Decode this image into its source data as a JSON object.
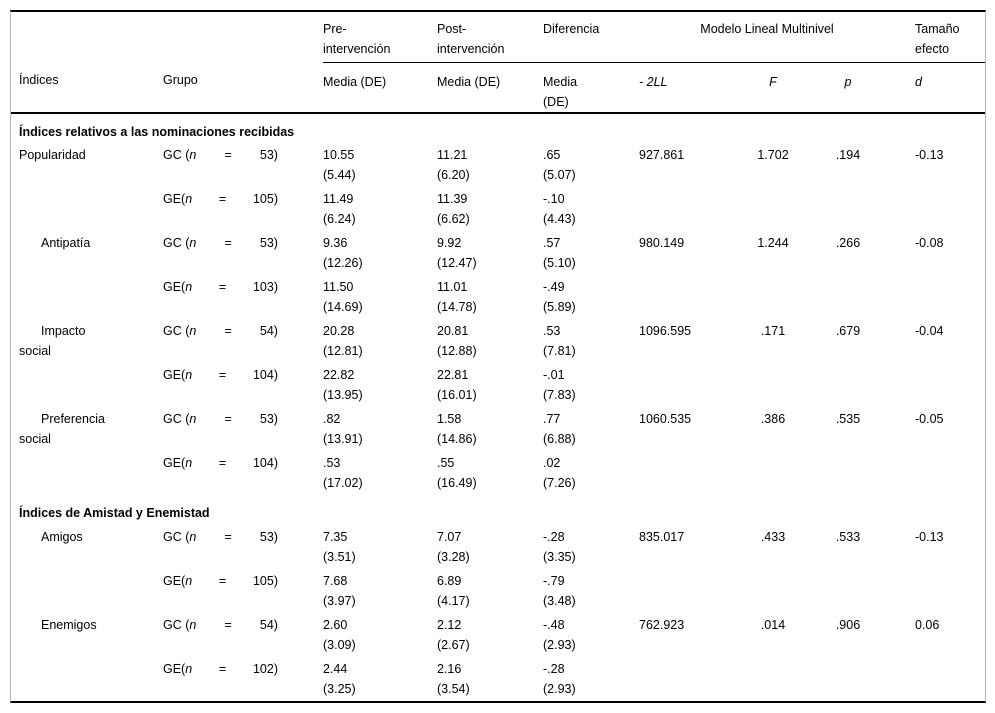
{
  "header": {
    "col_indices": "Índices",
    "col_grupo": "Grupo",
    "col_pre": "Pre-\nintervención",
    "col_post": "Post-\nintervención",
    "col_dif": "Diferencia",
    "col_mlm": "Modelo Lineal Multinivel",
    "col_tamano": "Tamaño\nefecto",
    "sub_media_pre": "Media (DE)",
    "sub_media_post": "Media (DE)",
    "sub_media_dif": "Media\n(DE)",
    "sub_ll": "- 2LL",
    "sub_f": "F",
    "sub_p": "p",
    "sub_d": "d"
  },
  "sections": [
    {
      "title": "Índices relativos a las nominaciones recibidas",
      "rows": [
        {
          "index_lines": [
            {
              "text": "Popularidad",
              "indent": false
            }
          ],
          "ll": "927.861",
          "f": "1.702",
          "p": ".194",
          "d": "-0.13",
          "subrows": [
            {
              "group": {
                "prefix": "GC (",
                "n": "n",
                "eq": "=",
                "count": "53)"
              },
              "pre_mean": "10.55",
              "pre_sd": "(5.44)",
              "post_mean": "11.21",
              "post_sd": "(6.20)",
              "dif_mean": ".65",
              "dif_sd": "(5.07)"
            },
            {
              "group": {
                "prefix": "GE(",
                "n": "n",
                "eq": "=",
                "count": "105)"
              },
              "pre_mean": "11.49",
              "pre_sd": "(6.24)",
              "post_mean": "11.39",
              "post_sd": "(6.62)",
              "dif_mean": "-.10",
              "dif_sd": "(4.43)"
            }
          ]
        },
        {
          "index_lines": [
            {
              "text": "Antipatía",
              "indent": true
            }
          ],
          "ll": "980.149",
          "f": "1.244",
          "p": ".266",
          "d": "-0.08",
          "subrows": [
            {
              "group": {
                "prefix": "GC (",
                "n": "n",
                "eq": "=",
                "count": "53)"
              },
              "pre_mean": "9.36",
              "pre_sd": "(12.26)",
              "post_mean": "9.92",
              "post_sd": "(12.47)",
              "dif_mean": ".57",
              "dif_sd": "(5.10)"
            },
            {
              "group": {
                "prefix": "GE(",
                "n": "n",
                "eq": "=",
                "count": "103)"
              },
              "pre_mean": "11.50",
              "pre_sd": "(14.69)",
              "post_mean": "11.01",
              "post_sd": "(14.78)",
              "dif_mean": "-.49",
              "dif_sd": "(5.89)"
            }
          ]
        },
        {
          "index_lines": [
            {
              "text": "Impacto",
              "indent": true
            },
            {
              "text": "social",
              "indent": false
            }
          ],
          "ll": "1096.595",
          "f": ".171",
          "p": ".679",
          "d": "-0.04",
          "subrows": [
            {
              "group": {
                "prefix": "GC (",
                "n": "n",
                "eq": "=",
                "count": "54)"
              },
              "pre_mean": "20.28",
              "pre_sd": "(12.81)",
              "post_mean": "20.81",
              "post_sd": "(12.88)",
              "dif_mean": ".53",
              "dif_sd": "(7.81)"
            },
            {
              "group": {
                "prefix": "GE(",
                "n": "n",
                "eq": "=",
                "count": "104)"
              },
              "pre_mean": "22.82",
              "pre_sd": "(13.95)",
              "post_mean": "22.81",
              "post_sd": "(16.01)",
              "dif_mean": "-.01",
              "dif_sd": "(7.83)"
            }
          ]
        },
        {
          "index_lines": [
            {
              "text": "Preferencia",
              "indent": true
            },
            {
              "text": "social",
              "indent": false
            }
          ],
          "ll": "1060.535",
          "f": ".386",
          "p": ".535",
          "d": "-0.05",
          "subrows": [
            {
              "group": {
                "prefix": "GC (",
                "n": "n",
                "eq": "=",
                "count": "53)"
              },
              "pre_mean": ".82",
              "pre_sd": "(13.91)",
              "post_mean": "1.58",
              "post_sd": "(14.86)",
              "dif_mean": ".77",
              "dif_sd": "(6.88)"
            },
            {
              "group": {
                "prefix": "GE(",
                "n": "n",
                "eq": "=",
                "count": "104)"
              },
              "pre_mean": ".53",
              "pre_sd": "(17.02)",
              "post_mean": ".55",
              "post_sd": "(16.49)",
              "dif_mean": ".02",
              "dif_sd": "(7.26)"
            }
          ]
        }
      ]
    },
    {
      "title": "Índices de Amistad y Enemistad",
      "rows": [
        {
          "index_lines": [
            {
              "text": "Amigos",
              "indent": true
            }
          ],
          "ll": "835.017",
          "f": ".433",
          "p": ".533",
          "d": "-0.13",
          "subrows": [
            {
              "group": {
                "prefix": "GC (",
                "n": "n",
                "eq": "=",
                "count": "53)"
              },
              "pre_mean": "7.35",
              "pre_sd": "(3.51)",
              "post_mean": "7.07",
              "post_sd": "(3.28)",
              "dif_mean": "-.28",
              "dif_sd": "(3.35)"
            },
            {
              "group": {
                "prefix": "GE(",
                "n": "n",
                "eq": "=",
                "count": "105)"
              },
              "pre_mean": "7.68",
              "pre_sd": "(3.97)",
              "post_mean": "6.89",
              "post_sd": "(4.17)",
              "dif_mean": "-.79",
              "dif_sd": "(3.48)"
            }
          ]
        },
        {
          "index_lines": [
            {
              "text": "Enemigos",
              "indent": true
            }
          ],
          "ll": "762.923",
          "f": ".014",
          "p": ".906",
          "d": "0.06",
          "subrows": [
            {
              "group": {
                "prefix": "GC (",
                "n": "n",
                "eq": "=",
                "count": "54)"
              },
              "pre_mean": "2.60",
              "pre_sd": "(3.09)",
              "post_mean": "2.12",
              "post_sd": "(2.67)",
              "dif_mean": "-.48",
              "dif_sd": "(2.93)"
            },
            {
              "group": {
                "prefix": "GE(",
                "n": "n",
                "eq": "=",
                "count": "102)"
              },
              "pre_mean": "2.44",
              "pre_sd": "(3.25)",
              "post_mean": "2.16",
              "post_sd": "(3.54)",
              "dif_mean": "-.28",
              "dif_sd": "(2.93)"
            }
          ]
        }
      ]
    }
  ]
}
